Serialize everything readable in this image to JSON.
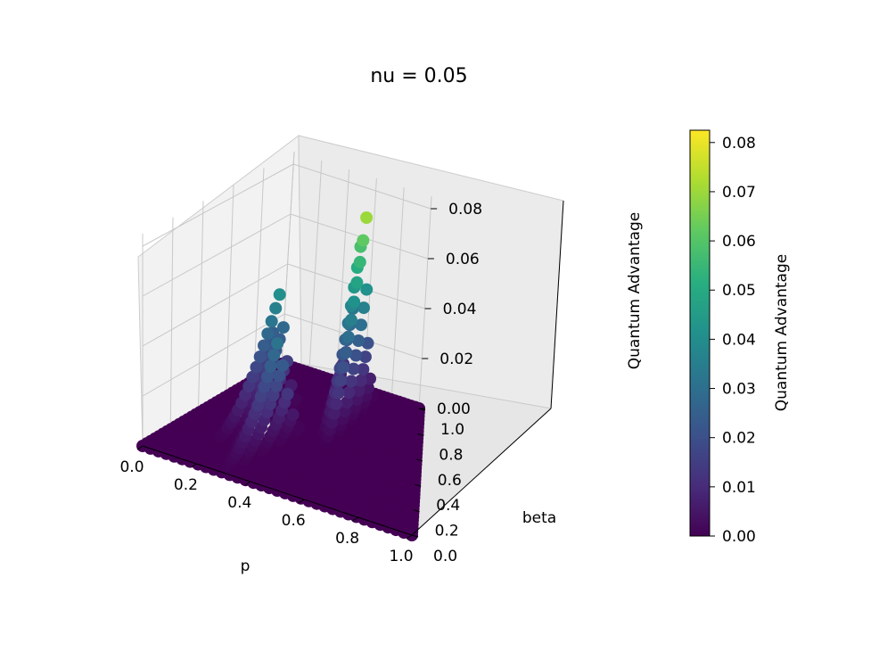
{
  "chart_data": {
    "type": "scatter",
    "projection": "3d",
    "title": "nu = 0.05",
    "xlabel": "p",
    "ylabel": "beta",
    "zlabel": "Quantum Advantage",
    "xlim": [
      0.0,
      1.0
    ],
    "ylim": [
      0.0,
      1.0
    ],
    "zlim": [
      0.0,
      0.085
    ],
    "x_ticks": [
      "0.0",
      "0.2",
      "0.4",
      "0.6",
      "0.8",
      "1.0"
    ],
    "y_ticks": [
      "0.0",
      "0.2",
      "0.4",
      "0.6",
      "0.8",
      "1.0"
    ],
    "z_ticks": [
      "0.00",
      "0.02",
      "0.04",
      "0.06",
      "0.08"
    ],
    "colormap": "viridis",
    "grid": true,
    "colorbar": {
      "label": "Quantum Advantage",
      "range": [
        0.0,
        0.0825
      ],
      "ticks": [
        "0.00",
        "0.01",
        "0.02",
        "0.03",
        "0.04",
        "0.05",
        "0.06",
        "0.07",
        "0.08"
      ]
    },
    "series": [
      {
        "peaks": [
          {
            "p": 0.18,
            "beta": 0.75,
            "max_value": 0.045
          },
          {
            "p": 0.3,
            "beta": 0.55,
            "max_value": 0.037
          },
          {
            "p": 0.55,
            "beta": 0.98,
            "max_value": 0.0825
          }
        ],
        "baseline_value": 0.0
      }
    ]
  }
}
